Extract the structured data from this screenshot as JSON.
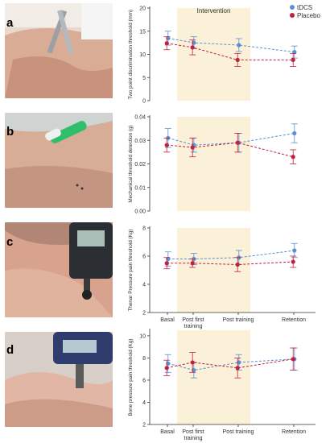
{
  "legend": [
    {
      "name": "tDCS",
      "color": "#5b8fd6"
    },
    {
      "name": "Placebo",
      "color": "#c2203f"
    }
  ],
  "intervention_label": "Intervention",
  "panels": [
    {
      "letter": "a",
      "photo": "two-point-caliper-on-hand-photo"
    },
    {
      "letter": "b",
      "photo": "monofilament-on-hand-photo"
    },
    {
      "letter": "c",
      "photo": "algometer-thenar-photo"
    },
    {
      "letter": "d",
      "photo": "algometer-bone-photo"
    }
  ],
  "x_tick_labels": [
    "Basal",
    "Post first training",
    "Post training",
    "Retention"
  ],
  "colors": {
    "tdcs": "#5b8fd6",
    "placebo": "#c2203f",
    "intervention_band": "#fbf0d8",
    "axis": "#333333"
  },
  "chart_data": [
    {
      "type": "line",
      "ylabel": "Two point discrimination threshold (mm)",
      "ylim": [
        0,
        20
      ],
      "yticks": [
        0,
        5,
        10,
        15,
        20
      ],
      "categories": [
        "Basal",
        "Post first training",
        "Post training",
        "Retention"
      ],
      "series": [
        {
          "name": "tDCS",
          "values": [
            13.5,
            12.5,
            12.0,
            10.5
          ],
          "errors": [
            1.5,
            1.3,
            1.4,
            1.3
          ]
        },
        {
          "name": "Placebo",
          "values": [
            12.4,
            11.5,
            8.8,
            8.8
          ],
          "errors": [
            1.4,
            1.6,
            1.4,
            1.4
          ]
        }
      ],
      "intervention_range": [
        "Post first training",
        "Post training"
      ]
    },
    {
      "type": "line",
      "ylabel": "Mechanical threshold detection (g)",
      "ylim": [
        0,
        0.04
      ],
      "yticks": [
        0.0,
        0.01,
        0.02,
        0.03,
        0.04
      ],
      "categories": [
        "Basal",
        "Post first training",
        "Post training",
        "Retention"
      ],
      "series": [
        {
          "name": "tDCS",
          "values": [
            0.031,
            0.028,
            0.029,
            0.033
          ],
          "errors": [
            0.004,
            0.003,
            0.004,
            0.004
          ]
        },
        {
          "name": "Placebo",
          "values": [
            0.028,
            0.027,
            0.029,
            0.023
          ],
          "errors": [
            0.003,
            0.004,
            0.004,
            0.003
          ]
        }
      ],
      "intervention_range": [
        "Post first training",
        "Post training"
      ]
    },
    {
      "type": "line",
      "ylabel": "Thenar Pressure pain threshold (Kg)",
      "ylim": [
        2,
        8
      ],
      "yticks": [
        2,
        4,
        6,
        8
      ],
      "categories": [
        "Basal",
        "Post first training",
        "Post training",
        "Retention"
      ],
      "series": [
        {
          "name": "tDCS",
          "values": [
            5.8,
            5.8,
            5.9,
            6.4
          ],
          "errors": [
            0.5,
            0.4,
            0.5,
            0.5
          ]
        },
        {
          "name": "Placebo",
          "values": [
            5.5,
            5.5,
            5.4,
            5.6
          ],
          "errors": [
            0.4,
            0.3,
            0.5,
            0.4
          ]
        }
      ],
      "intervention_range": [
        "Post first training",
        "Post training"
      ]
    },
    {
      "type": "line",
      "ylabel": "Bone pressure pain threshold (Kg)",
      "ylim": [
        2,
        10.5
      ],
      "yticks": [
        2,
        4,
        6,
        8,
        10
      ],
      "categories": [
        "Basal",
        "Post first training",
        "Post training",
        "Retention"
      ],
      "series": [
        {
          "name": "tDCS",
          "values": [
            7.5,
            6.9,
            7.6,
            7.9
          ],
          "errors": [
            0.8,
            0.7,
            0.7,
            1.0
          ]
        },
        {
          "name": "Placebo",
          "values": [
            7.1,
            7.6,
            7.1,
            7.9
          ],
          "errors": [
            0.7,
            0.9,
            0.9,
            1.0
          ]
        }
      ],
      "intervention_range": [
        "Post first training",
        "Post training"
      ]
    }
  ]
}
